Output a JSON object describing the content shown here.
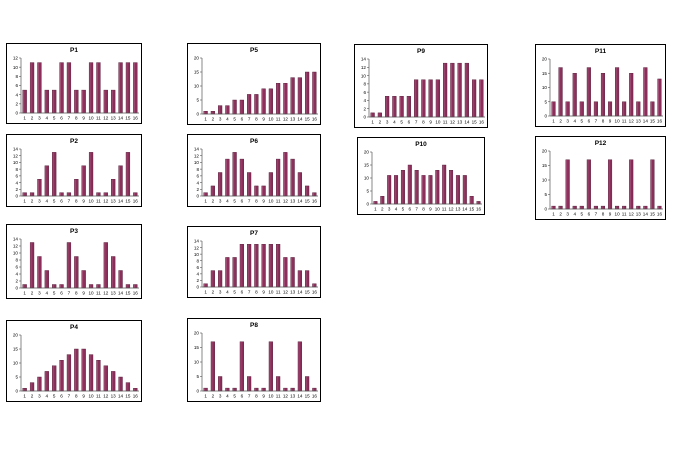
{
  "style": {
    "bar_color": "#8B2F5A",
    "bar_highlight": "#B86A8E",
    "bar_shadow": "#4A1530",
    "panel_border": "#000000",
    "plot_fill": "#ffffff",
    "axis_color": "#555555"
  },
  "chart_data": [
    {
      "type": "bar",
      "title": "P1",
      "categories": [
        "1",
        "2",
        "3",
        "4",
        "5",
        "6",
        "7",
        "8",
        "9",
        "10",
        "11",
        "12",
        "13",
        "14",
        "15",
        "16"
      ],
      "values": [
        5,
        11,
        11,
        5,
        5,
        11,
        11,
        5,
        5,
        11,
        11,
        5,
        5,
        11,
        11,
        11
      ],
      "ylim": [
        0,
        12
      ],
      "yticks": [
        "0",
        "2",
        "4",
        "6",
        "8",
        "10",
        "12"
      ],
      "grid": false,
      "legend": "none"
    },
    {
      "type": "bar",
      "title": "P2",
      "categories": [
        "1",
        "2",
        "3",
        "4",
        "5",
        "6",
        "7",
        "8",
        "9",
        "10",
        "11",
        "12",
        "13",
        "14",
        "15",
        "16"
      ],
      "values": [
        1,
        1,
        5,
        9,
        13,
        1,
        1,
        5,
        9,
        13,
        1,
        1,
        5,
        9,
        13,
        1
      ],
      "ylim": [
        0,
        14
      ],
      "yticks": [
        "0",
        "2",
        "4",
        "6",
        "8",
        "10",
        "12",
        "14"
      ],
      "grid": false,
      "legend": "none"
    },
    {
      "type": "bar",
      "title": "P3",
      "categories": [
        "1",
        "2",
        "3",
        "4",
        "5",
        "6",
        "7",
        "8",
        "9",
        "10",
        "11",
        "12",
        "13",
        "14",
        "15",
        "16"
      ],
      "values": [
        1,
        13,
        9,
        5,
        1,
        1,
        13,
        9,
        5,
        1,
        1,
        13,
        9,
        5,
        1,
        1
      ],
      "ylim": [
        0,
        14
      ],
      "yticks": [
        "0",
        "2",
        "4",
        "6",
        "8",
        "10",
        "12",
        "14"
      ],
      "grid": false,
      "legend": "none"
    },
    {
      "type": "bar",
      "title": "P4",
      "categories": [
        "1",
        "2",
        "3",
        "4",
        "5",
        "6",
        "7",
        "8",
        "9",
        "10",
        "11",
        "12",
        "13",
        "14",
        "15",
        "16"
      ],
      "values": [
        1,
        3,
        5,
        7,
        9,
        11,
        13,
        15,
        15,
        13,
        11,
        9,
        7,
        5,
        3,
        1
      ],
      "ylim": [
        0,
        20
      ],
      "yticks": [
        "0",
        "5",
        "10",
        "15",
        "20"
      ],
      "grid": false,
      "legend": "none"
    },
    {
      "type": "bar",
      "title": "P5",
      "categories": [
        "1",
        "2",
        "3",
        "4",
        "5",
        "6",
        "7",
        "8",
        "9",
        "10",
        "11",
        "12",
        "13",
        "14",
        "15",
        "16"
      ],
      "values": [
        1,
        1,
        3,
        3,
        5,
        5,
        7,
        7,
        9,
        9,
        11,
        11,
        13,
        13,
        15,
        15
      ],
      "ylim": [
        0,
        20
      ],
      "yticks": [
        "0",
        "5",
        "10",
        "15",
        "20"
      ],
      "grid": false,
      "legend": "none"
    },
    {
      "type": "bar",
      "title": "P6",
      "categories": [
        "1",
        "2",
        "3",
        "4",
        "5",
        "6",
        "7",
        "8",
        "9",
        "10",
        "11",
        "12",
        "13",
        "14",
        "15",
        "16"
      ],
      "values": [
        1,
        3,
        7,
        11,
        13,
        11,
        7,
        3,
        3,
        7,
        11,
        13,
        11,
        7,
        3,
        1
      ],
      "ylim": [
        0,
        14
      ],
      "yticks": [
        "0",
        "2",
        "4",
        "6",
        "8",
        "10",
        "12",
        "14"
      ],
      "grid": false,
      "legend": "none"
    },
    {
      "type": "bar",
      "title": "P7",
      "categories": [
        "1",
        "2",
        "3",
        "4",
        "5",
        "6",
        "7",
        "8",
        "9",
        "10",
        "11",
        "12",
        "13",
        "14",
        "15",
        "16"
      ],
      "values": [
        1,
        5,
        5,
        9,
        9,
        13,
        13,
        13,
        13,
        13,
        13,
        9,
        9,
        5,
        5,
        1
      ],
      "ylim": [
        0,
        14
      ],
      "yticks": [
        "0",
        "2",
        "4",
        "6",
        "8",
        "10",
        "12",
        "14"
      ],
      "grid": false,
      "legend": "none"
    },
    {
      "type": "bar",
      "title": "P8",
      "categories": [
        "1",
        "2",
        "3",
        "4",
        "5",
        "6",
        "7",
        "8",
        "9",
        "10",
        "11",
        "12",
        "13",
        "14",
        "15",
        "16"
      ],
      "values": [
        1,
        17,
        5,
        1,
        1,
        17,
        5,
        1,
        1,
        17,
        5,
        1,
        1,
        17,
        5,
        1
      ],
      "ylim": [
        0,
        20
      ],
      "yticks": [
        "0",
        "5",
        "10",
        "15",
        "20"
      ],
      "grid": false,
      "legend": "none"
    },
    {
      "type": "bar",
      "title": "P9",
      "categories": [
        "1",
        "2",
        "3",
        "4",
        "5",
        "6",
        "7",
        "8",
        "9",
        "10",
        "11",
        "12",
        "13",
        "14",
        "15",
        "16"
      ],
      "values": [
        1,
        1,
        5,
        5,
        5,
        5,
        9,
        9,
        9,
        9,
        13,
        13,
        13,
        13,
        9,
        9
      ],
      "ylim": [
        0,
        14
      ],
      "yticks": [
        "0",
        "2",
        "4",
        "6",
        "8",
        "10",
        "12",
        "14"
      ],
      "grid": false,
      "legend": "none"
    },
    {
      "type": "bar",
      "title": "P10",
      "categories": [
        "1",
        "2",
        "3",
        "4",
        "5",
        "6",
        "7",
        "8",
        "9",
        "10",
        "11",
        "12",
        "13",
        "14",
        "15",
        "16"
      ],
      "values": [
        1,
        3,
        11,
        11,
        13,
        15,
        13,
        11,
        11,
        13,
        15,
        13,
        11,
        11,
        3,
        1
      ],
      "ylim": [
        0,
        20
      ],
      "yticks": [
        "0",
        "5",
        "10",
        "15",
        "20"
      ],
      "grid": false,
      "legend": "none"
    },
    {
      "type": "bar",
      "title": "P11",
      "categories": [
        "1",
        "2",
        "3",
        "4",
        "5",
        "6",
        "7",
        "8",
        "9",
        "10",
        "11",
        "12",
        "13",
        "14",
        "15",
        "16"
      ],
      "values": [
        5,
        17,
        5,
        15,
        5,
        17,
        5,
        15,
        5,
        17,
        5,
        15,
        5,
        17,
        5,
        13
      ],
      "ylim": [
        0,
        20
      ],
      "yticks": [
        "0",
        "5",
        "10",
        "15",
        "20"
      ],
      "grid": false,
      "legend": "none"
    },
    {
      "type": "bar",
      "title": "P12",
      "categories": [
        "1",
        "2",
        "3",
        "4",
        "5",
        "6",
        "7",
        "8",
        "9",
        "10",
        "11",
        "12",
        "13",
        "14",
        "15",
        "16"
      ],
      "values": [
        1,
        1,
        17,
        1,
        1,
        17,
        1,
        1,
        17,
        1,
        1,
        17,
        1,
        1,
        17,
        1
      ],
      "ylim": [
        0,
        20
      ],
      "yticks": [
        "0",
        "5",
        "10",
        "15",
        "20"
      ],
      "grid": false,
      "legend": "none"
    }
  ]
}
